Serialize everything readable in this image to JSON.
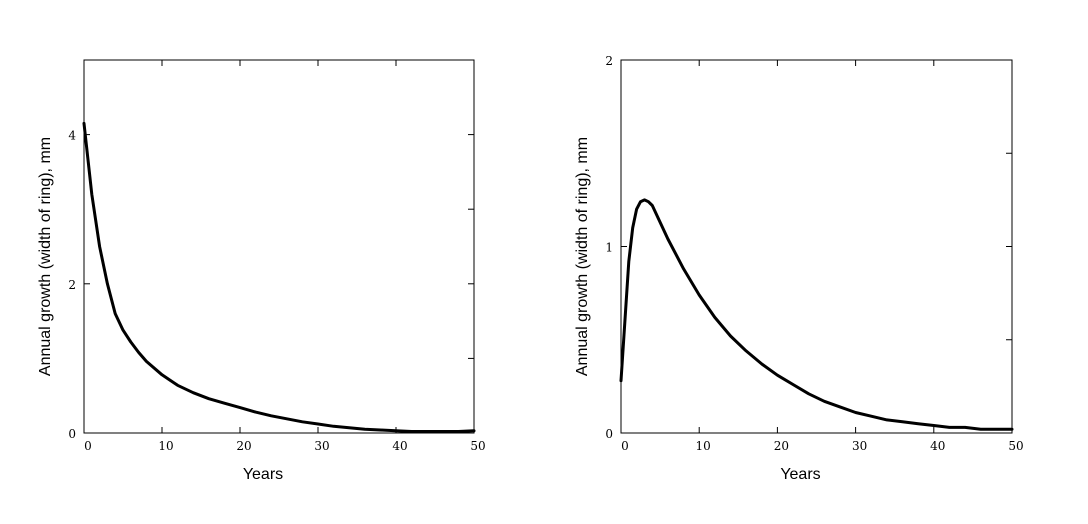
{
  "chart_data": [
    {
      "type": "line",
      "xlabel": "Years",
      "ylabel": "Annual growth (width of ring),  mm",
      "xlim": [
        0,
        50
      ],
      "ylim": [
        0,
        5
      ],
      "x_ticks": [
        0,
        10,
        20,
        30,
        40,
        50
      ],
      "y_ticks": [
        0,
        2,
        4
      ],
      "y_minor_ticks": [
        1,
        3,
        5
      ],
      "grid": false,
      "series": [
        {
          "x": [
            0,
            1,
            2,
            3,
            4,
            5,
            6,
            7,
            8,
            10,
            12,
            14,
            16,
            18,
            20,
            22,
            24,
            26,
            28,
            30,
            32,
            34,
            36,
            38,
            40,
            42,
            44,
            46,
            48,
            50
          ],
          "values": [
            4.15,
            3.2,
            2.5,
            2.0,
            1.6,
            1.38,
            1.22,
            1.08,
            0.96,
            0.78,
            0.64,
            0.54,
            0.46,
            0.4,
            0.34,
            0.28,
            0.23,
            0.19,
            0.15,
            0.12,
            0.09,
            0.07,
            0.05,
            0.04,
            0.03,
            0.02,
            0.02,
            0.02,
            0.02,
            0.03
          ]
        }
      ]
    },
    {
      "type": "line",
      "xlabel": "Years",
      "ylabel": "Annual growth (width of ring),  mm",
      "xlim": [
        0,
        50
      ],
      "ylim": [
        0,
        2
      ],
      "x_ticks": [
        0,
        10,
        20,
        30,
        40,
        50
      ],
      "y_ticks": [
        0,
        1,
        2
      ],
      "y_minor_ticks": [
        0.5,
        1.5
      ],
      "grid": false,
      "series": [
        {
          "x": [
            0,
            0.5,
            1,
            1.5,
            2,
            2.5,
            3,
            3.5,
            4,
            5,
            6,
            8,
            10,
            12,
            14,
            16,
            18,
            20,
            22,
            24,
            26,
            28,
            30,
            32,
            34,
            36,
            38,
            40,
            42,
            44,
            46,
            48,
            50
          ],
          "values": [
            0.28,
            0.6,
            0.92,
            1.1,
            1.2,
            1.24,
            1.25,
            1.24,
            1.22,
            1.13,
            1.04,
            0.88,
            0.74,
            0.62,
            0.52,
            0.44,
            0.37,
            0.31,
            0.26,
            0.21,
            0.17,
            0.14,
            0.11,
            0.09,
            0.07,
            0.06,
            0.05,
            0.04,
            0.03,
            0.03,
            0.02,
            0.02,
            0.02
          ]
        }
      ]
    }
  ]
}
